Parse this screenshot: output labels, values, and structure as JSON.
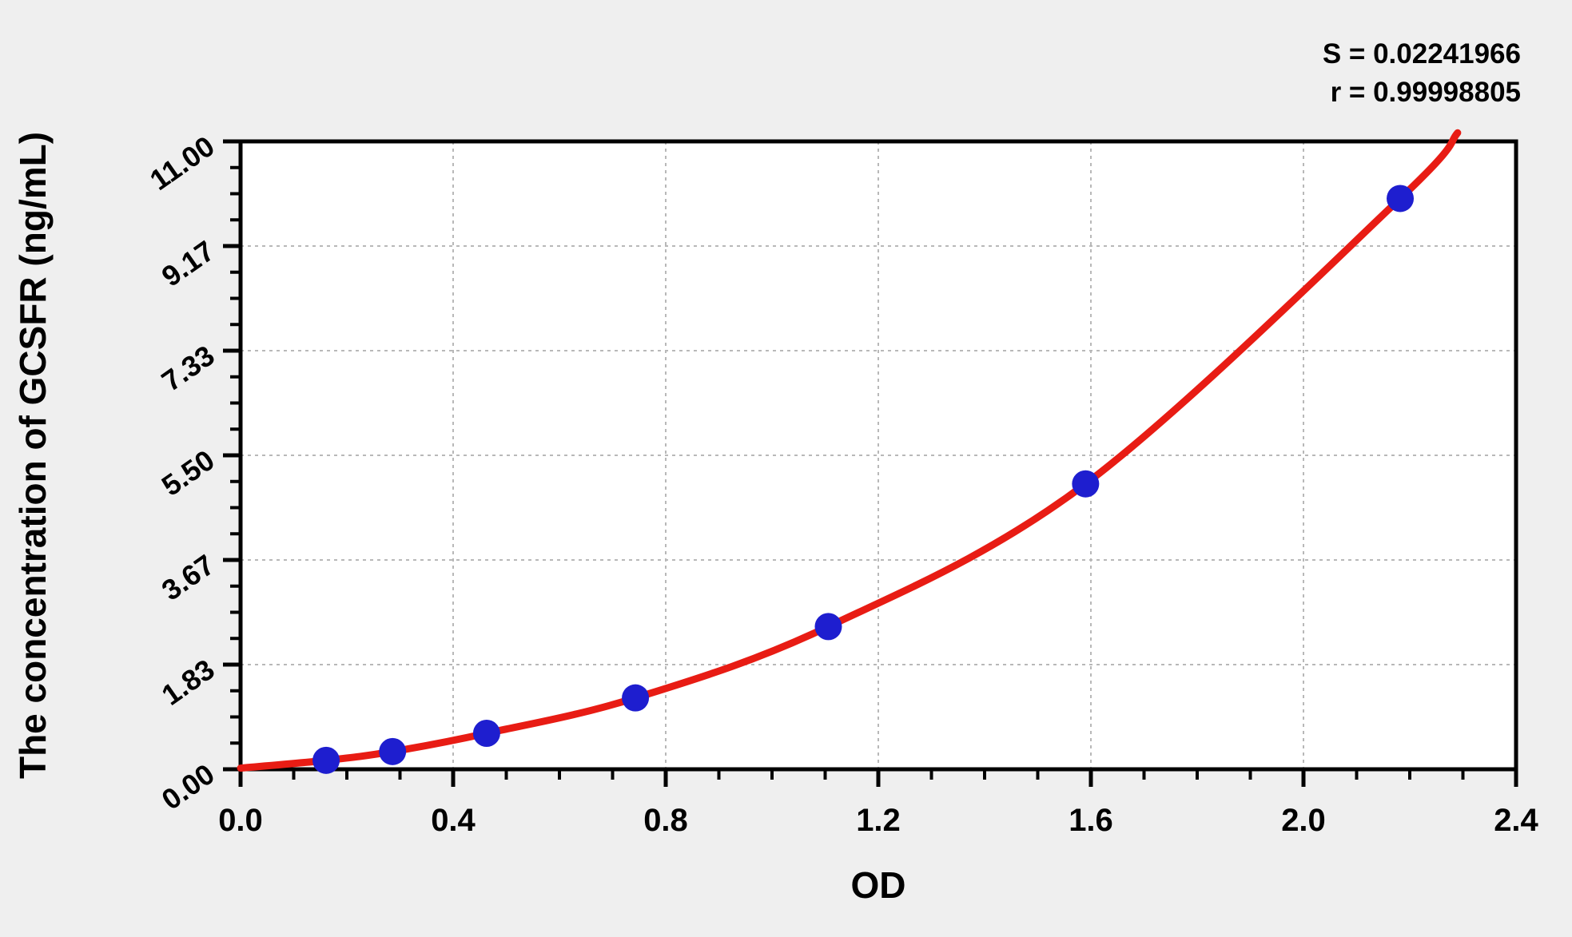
{
  "page": {
    "background": "#efefef",
    "plot_background": "#ffffff"
  },
  "stats": {
    "s_text": "S = 0.02241966",
    "r_text": "r = 0.99998805"
  },
  "chart_data": {
    "type": "scatter",
    "title": "",
    "xlabel": "OD",
    "ylabel": "The concentration of GCSFR (ng/mL)",
    "xlim": [
      0,
      2.4
    ],
    "ylim": [
      0,
      11
    ],
    "x_major_ticks": [
      0.0,
      0.4,
      0.8,
      1.2,
      1.6,
      2.0,
      2.4
    ],
    "x_tick_labels": [
      "0.0",
      "0.4",
      "0.8",
      "1.2",
      "1.6",
      "2.0",
      "2.4"
    ],
    "x_minor_step": 0.1,
    "y_major_ticks": [
      0.0,
      1.8333,
      3.6667,
      5.5,
      7.3333,
      9.1667,
      11.0
    ],
    "y_tick_labels": [
      "0.00",
      "1.83",
      "3.67",
      "5.50",
      "7.33",
      "9.17",
      "11.00"
    ],
    "y_minor_divisions": 4,
    "grid": {
      "show": true,
      "style": "dashed",
      "color": "#b8b8b8",
      "at": "major-ticks"
    },
    "legend": {
      "show": false
    },
    "fit_stats": {
      "S": 0.02241966,
      "r": 0.99998805
    },
    "series": [
      {
        "name": "standard-points",
        "type": "scatter",
        "color": "#1e1ecf",
        "marker": "circle",
        "x": [
          0.161,
          0.286,
          0.463,
          0.743,
          1.106,
          1.59,
          2.182
        ],
        "y": [
          0.156,
          0.31,
          0.63,
          1.25,
          2.5,
          5.0,
          10.0
        ]
      },
      {
        "name": "fit-curve",
        "type": "line",
        "color": "#e81c14",
        "x": [
          0.0,
          0.161,
          0.286,
          0.463,
          0.743,
          1.106,
          1.59,
          2.182,
          2.29
        ],
        "y": [
          0.02,
          0.156,
          0.31,
          0.63,
          1.25,
          2.5,
          5.0,
          10.0,
          11.15
        ]
      }
    ]
  }
}
